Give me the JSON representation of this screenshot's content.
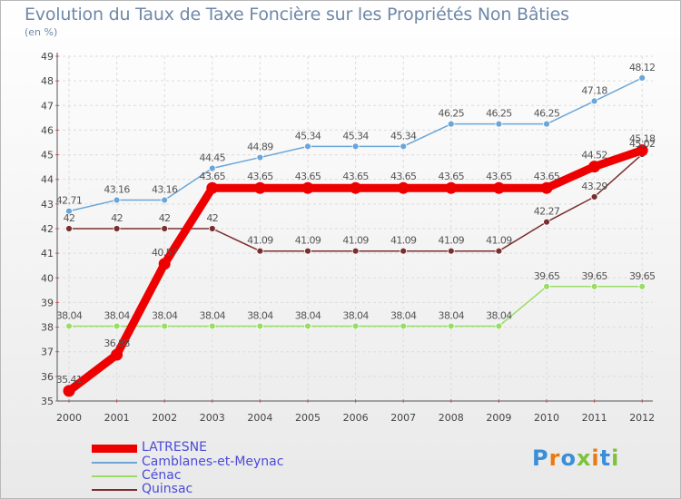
{
  "chart_data": {
    "type": "line",
    "title": "Evolution du Taux de Taxe Foncière sur les Propriétés Non Bâties",
    "subtitle": "(en %)",
    "xlabel": "",
    "ylabel": "",
    "ylim": [
      35,
      49
    ],
    "yticks": [
      "35",
      "36",
      "37",
      "38",
      "39",
      "40",
      "41",
      "42",
      "43",
      "44",
      "45",
      "46",
      "47",
      "48",
      "49"
    ],
    "categories": [
      "2000",
      "2001",
      "2002",
      "2003",
      "2004",
      "2005",
      "2006",
      "2007",
      "2008",
      "2009",
      "2010",
      "2011",
      "2012"
    ],
    "grid": true,
    "legend_position": "bottom-left",
    "series": [
      {
        "name": "LATRESNE",
        "color": "#ee0000",
        "values": [
          35.41,
          36.88,
          40.57,
          43.65,
          43.65,
          43.65,
          43.65,
          43.65,
          43.65,
          43.65,
          43.65,
          44.52,
          45.18
        ],
        "labels": [
          "35.41",
          "36.88",
          "40.57",
          "43.65",
          "43.65",
          "43.65",
          "43.65",
          "43.65",
          "43.65",
          "43.65",
          "43.65",
          "44.52",
          "45.18"
        ]
      },
      {
        "name": "Camblanes-et-Meynac",
        "color": "#6aa6d8",
        "values": [
          42.71,
          43.16,
          43.16,
          44.45,
          44.89,
          45.34,
          45.34,
          45.34,
          46.25,
          46.25,
          46.25,
          47.18,
          48.12
        ],
        "labels": [
          "42.71",
          "43.16",
          "43.16",
          "44.45",
          "44.89",
          "45.34",
          "45.34",
          "45.34",
          "46.25",
          "46.25",
          "46.25",
          "47.18",
          "48.12"
        ]
      },
      {
        "name": "Cénac",
        "color": "#99dd66",
        "values": [
          38.04,
          38.04,
          38.04,
          38.04,
          38.04,
          38.04,
          38.04,
          38.04,
          38.04,
          38.04,
          39.65,
          39.65,
          39.65
        ],
        "labels": [
          "38.04",
          "38.04",
          "38.04",
          "38.04",
          "38.04",
          "38.04",
          "38.04",
          "38.04",
          "38.04",
          "38.04",
          "39.65",
          "39.65",
          "39.65"
        ]
      },
      {
        "name": "Quinsac",
        "color": "#7a2e2e",
        "values": [
          42,
          42,
          42,
          42,
          41.09,
          41.09,
          41.09,
          41.09,
          41.09,
          41.09,
          42.27,
          43.29,
          45.02
        ],
        "labels": [
          "42",
          "42",
          "42",
          "42",
          "41.09",
          "41.09",
          "41.09",
          "41.09",
          "41.09",
          "41.09",
          "42.27",
          "43.29",
          "45.02"
        ]
      }
    ]
  },
  "brand": {
    "letters": [
      "P",
      "r",
      "o",
      "x",
      "i",
      "t",
      "i"
    ],
    "colors": [
      "#3a8fd8",
      "#ea7a10",
      "#3a8fd8",
      "#7cc23a",
      "#ea7a10",
      "#3a8fd8",
      "#7cc23a"
    ]
  }
}
